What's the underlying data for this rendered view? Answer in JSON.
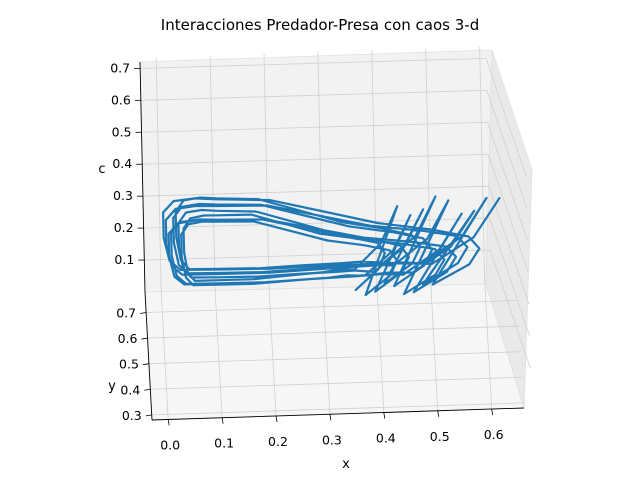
{
  "chart_data": {
    "type": "line",
    "projection": "3d",
    "title": "Interacciones Predador-Presa con caos 3-d",
    "xlabel": "x",
    "ylabel": "y",
    "zlabel": "c",
    "x_ticks": [
      "0.0",
      "0.1",
      "0.2",
      "0.3",
      "0.4",
      "0.5",
      "0.6"
    ],
    "y_ticks": [
      "0.3",
      "0.4",
      "0.5",
      "0.6",
      "0.7"
    ],
    "z_ticks": [
      "0.1",
      "0.2",
      "0.3",
      "0.4",
      "0.5",
      "0.6",
      "0.7"
    ],
    "xlim": [
      -0.03,
      0.66
    ],
    "ylim": [
      0.28,
      0.78
    ],
    "zlim": [
      0.0,
      0.72
    ],
    "grid": true,
    "series": [
      {
        "color": "#1f77b4",
        "points": [
          [
            0.63,
            0.75,
            0.33
          ],
          [
            0.58,
            0.7,
            0.24
          ],
          [
            0.5,
            0.62,
            0.22
          ],
          [
            0.45,
            0.56,
            0.28
          ],
          [
            0.4,
            0.5,
            0.33
          ],
          [
            0.3,
            0.44,
            0.38
          ],
          [
            0.2,
            0.4,
            0.41
          ],
          [
            0.1,
            0.38,
            0.43
          ],
          [
            0.03,
            0.36,
            0.45
          ],
          [
            0.01,
            0.34,
            0.5
          ],
          [
            0.0,
            0.34,
            0.58
          ],
          [
            0.0,
            0.35,
            0.66
          ],
          [
            0.02,
            0.36,
            0.69
          ],
          [
            0.06,
            0.38,
            0.68
          ],
          [
            0.1,
            0.42,
            0.64
          ],
          [
            0.2,
            0.48,
            0.58
          ],
          [
            0.3,
            0.52,
            0.5
          ],
          [
            0.4,
            0.56,
            0.42
          ],
          [
            0.5,
            0.62,
            0.34
          ],
          [
            0.57,
            0.68,
            0.26
          ],
          [
            0.59,
            0.7,
            0.2
          ],
          [
            0.57,
            0.66,
            0.18
          ],
          [
            0.5,
            0.56,
            0.2
          ]
        ]
      }
    ]
  }
}
